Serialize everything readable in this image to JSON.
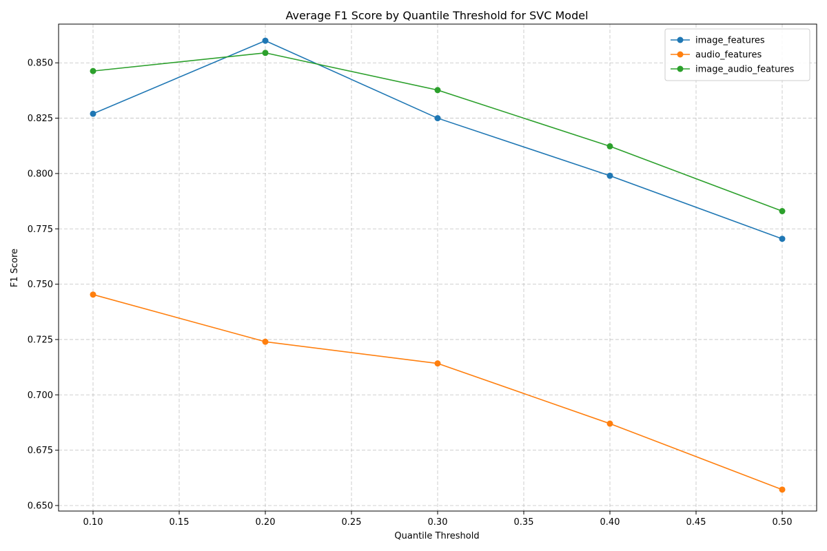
{
  "chart_data": {
    "type": "line",
    "title": "Average F1 Score by Quantile Threshold for SVC Model",
    "xlabel": "Quantile Threshold",
    "ylabel": "F1 Score",
    "x": [
      0.1,
      0.2,
      0.3,
      0.4,
      0.5
    ],
    "xlim": [
      0.08,
      0.52
    ],
    "ylim": [
      0.6475,
      0.8675
    ],
    "x_ticks": [
      0.1,
      0.15,
      0.2,
      0.25,
      0.3,
      0.35,
      0.4,
      0.45,
      0.5
    ],
    "x_tick_labels": [
      "0.10",
      "0.15",
      "0.20",
      "0.25",
      "0.30",
      "0.35",
      "0.40",
      "0.45",
      "0.50"
    ],
    "y_ticks": [
      0.65,
      0.675,
      0.7,
      0.725,
      0.75,
      0.775,
      0.8,
      0.825,
      0.85
    ],
    "y_tick_labels": [
      "0.650",
      "0.675",
      "0.700",
      "0.725",
      "0.750",
      "0.775",
      "0.800",
      "0.825",
      "0.850"
    ],
    "grid": true,
    "grid_style": "dashed",
    "legend_position": "top-right",
    "series": [
      {
        "name": "image_features",
        "color": "#1f77b4",
        "values": [
          0.827,
          0.86,
          0.825,
          0.799,
          0.7705
        ]
      },
      {
        "name": "audio_features",
        "color": "#ff7f0e",
        "values": [
          0.7453,
          0.724,
          0.7142,
          0.687,
          0.6572
        ]
      },
      {
        "name": "image_audio_features",
        "color": "#2ca02c",
        "values": [
          0.8463,
          0.8545,
          0.8377,
          0.8123,
          0.783
        ]
      }
    ]
  }
}
